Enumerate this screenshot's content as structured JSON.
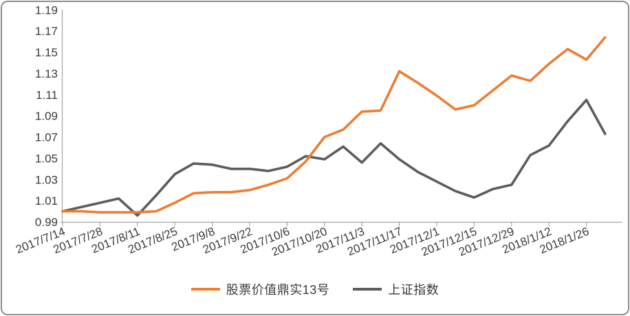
{
  "chart_data": {
    "type": "line",
    "title": "",
    "x_tick_labels": [
      "2017/7/14",
      "2017/7/28",
      "2017/8/11",
      "2017/8/25",
      "2017/9/8",
      "2017/9/22",
      "2017/10/6",
      "2017/10/20",
      "2017/11/3",
      "2017/11/17",
      "2017/12/1",
      "2017/12/15",
      "2017/12/29",
      "2018/1/12",
      "2018/1/26"
    ],
    "points_per_label": 2,
    "n_points": 30,
    "series": [
      {
        "name": "股票价值鼎实13号",
        "color": "#ED7D31",
        "values": [
          1.0,
          1.0,
          0.999,
          0.999,
          0.999,
          1.0,
          1.008,
          1.017,
          1.018,
          1.018,
          1.02,
          1.025,
          1.031,
          1.047,
          1.07,
          1.077,
          1.094,
          1.095,
          1.132,
          1.121,
          1.109,
          1.096,
          1.1,
          1.114,
          1.128,
          1.123,
          1.139,
          1.153,
          1.143,
          1.164
        ]
      },
      {
        "name": "上证指数",
        "color": "#5C5C5C",
        "values": [
          1.0,
          1.004,
          1.008,
          1.012,
          0.996,
          1.015,
          1.035,
          1.045,
          1.044,
          1.04,
          1.04,
          1.038,
          1.042,
          1.052,
          1.049,
          1.061,
          1.046,
          1.064,
          1.049,
          1.037,
          1.028,
          1.019,
          1.013,
          1.021,
          1.025,
          1.053,
          1.062,
          1.085,
          1.105,
          1.073
        ]
      }
    ],
    "y_axis": {
      "min": 0.99,
      "max": 1.19,
      "step": 0.02,
      "tick_labels": [
        "1.19",
        "1.17",
        "1.15",
        "1.13",
        "1.11",
        "1.09",
        "1.07",
        "1.05",
        "1.03",
        "1.01",
        "0.99"
      ]
    },
    "grid": false,
    "legend_position": "bottom"
  },
  "colors": {
    "axis_line": "#A6A6A6",
    "tick_text": "#3B3B3B",
    "frame": "#8D8D8D",
    "background": "#FFFFFF"
  }
}
